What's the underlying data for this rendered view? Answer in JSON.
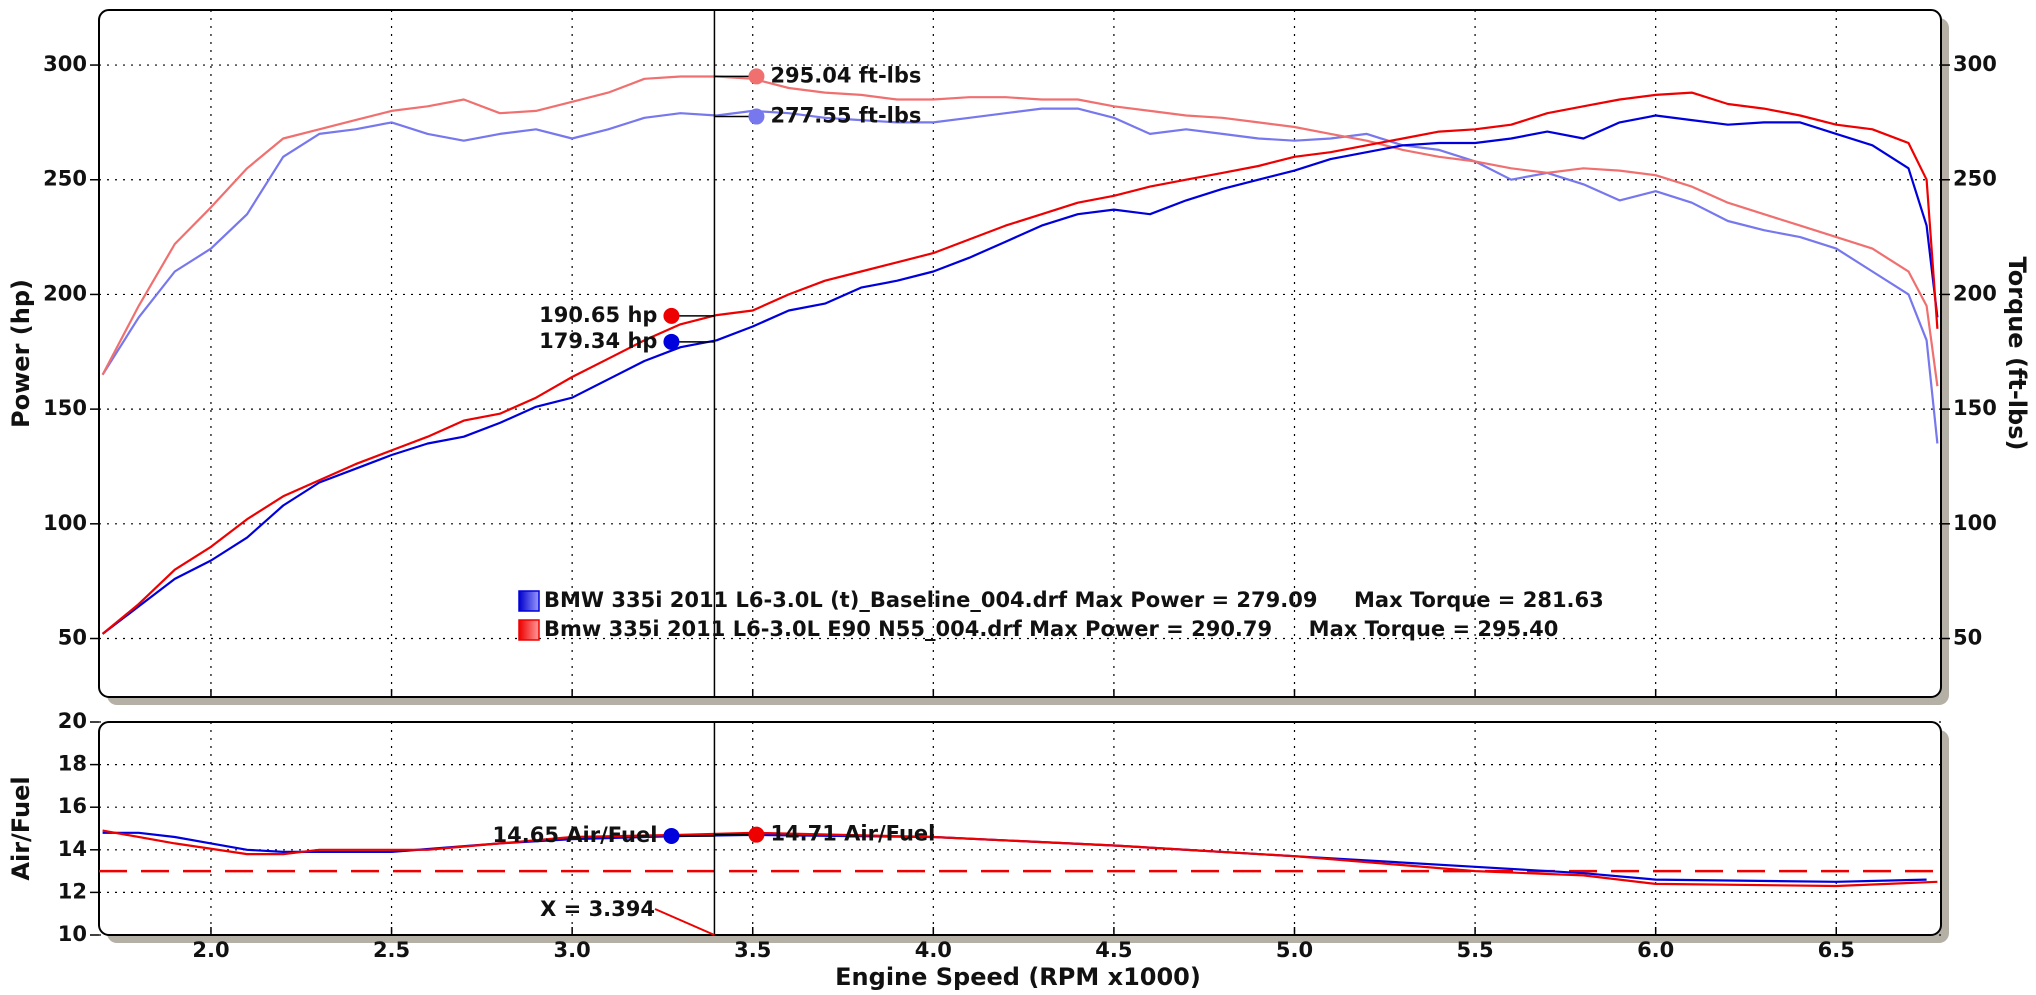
{
  "chart_data": {
    "type": "line",
    "xlabel": "Engine Speed (RPM x1000)",
    "xlim": [
      1.69,
      6.79
    ],
    "xticks": [
      {
        "value": 2,
        "label": "2.0"
      },
      {
        "value": 2.5,
        "label": "2.5"
      },
      {
        "value": 3,
        "label": "3.0"
      },
      {
        "value": 3.5,
        "label": "3.5"
      },
      {
        "value": 4,
        "label": "4.0"
      },
      {
        "value": 4.5,
        "label": "4.5"
      },
      {
        "value": 5,
        "label": "5.0"
      },
      {
        "value": 5.5,
        "label": "5.5"
      },
      {
        "value": 6,
        "label": "6.0"
      },
      {
        "value": 6.5,
        "label": "6.5"
      }
    ],
    "cursor": {
      "x": 3.394,
      "label": "X = 3.394"
    },
    "legend": [
      {
        "color": "#0000dd",
        "text": "BMW 335i 2011 L6-3.0L (t)_Baseline_004.drf Max Power = 279.09     Max Torque = 281.63"
      },
      {
        "color": "#ee0000",
        "text": "Bmw 335i 2011 L6-3.0L E90 N55_004.drf Max Power = 290.79     Max Torque = 295.40"
      }
    ],
    "panels": [
      {
        "ylabel": "Power (hp)",
        "y2label": "Torque (ft-lbs)",
        "ylim": [
          24.5,
          324
        ],
        "yticks": [
          50,
          100,
          150,
          200,
          250,
          300
        ],
        "y2lim": [
          24.5,
          324
        ],
        "y2ticks": [
          50,
          100,
          150,
          200,
          250,
          300
        ],
        "grid": true,
        "x": [
          1.7,
          1.8,
          1.9,
          2.0,
          2.1,
          2.2,
          2.3,
          2.4,
          2.5,
          2.6,
          2.7,
          2.8,
          2.9,
          3.0,
          3.1,
          3.2,
          3.3,
          3.4,
          3.5,
          3.6,
          3.7,
          3.8,
          3.9,
          4.0,
          4.1,
          4.2,
          4.3,
          4.4,
          4.5,
          4.6,
          4.7,
          4.8,
          4.9,
          5.0,
          5.1,
          5.2,
          5.3,
          5.4,
          5.5,
          5.6,
          5.7,
          5.8,
          5.9,
          6.0,
          6.1,
          6.2,
          6.3,
          6.4,
          6.5,
          6.6,
          6.7,
          6.75,
          6.78
        ],
        "series": [
          {
            "color": "#7777ee",
            "axis": "y2",
            "values": [
              165,
              190,
              210,
              220,
              235,
              260,
              270,
              272,
              275,
              270,
              267,
              270,
              272,
              268,
              272,
              277,
              279,
              278,
              280,
              279,
              277,
              276,
              275,
              275,
              277,
              279,
              281,
              281,
              277,
              270,
              272,
              270,
              268,
              267,
              268,
              270,
              265,
              263,
              258,
              250,
              253,
              248,
              241,
              245,
              240,
              232,
              228,
              225,
              220,
              210,
              200,
              180,
              135
            ]
          },
          {
            "color": "#f07070",
            "axis": "y2",
            "values": [
              165,
              195,
              222,
              238,
              255,
              268,
              272,
              276,
              280,
              282,
              285,
              279,
              280,
              284,
              288,
              294,
              295,
              295,
              294,
              290,
              288,
              287,
              285,
              285,
              286,
              286,
              285,
              285,
              282,
              280,
              278,
              277,
              275,
              273,
              270,
              267,
              263,
              260,
              258,
              255,
              253,
              255,
              254,
              252,
              247,
              240,
              235,
              230,
              225,
              220,
              210,
              195,
              160
            ]
          },
          {
            "color": "#0000dd",
            "values": [
              52,
              64,
              76,
              84,
              94,
              108,
              118,
              124,
              130,
              135,
              138,
              144,
              151,
              155,
              163,
              171,
              177,
              180,
              186,
              193,
              196,
              203,
              206,
              210,
              216,
              223,
              230,
              235,
              237,
              235,
              241,
              246,
              250,
              254,
              259,
              262,
              265,
              266,
              266,
              268,
              271,
              268,
              275,
              278,
              276,
              274,
              275,
              275,
              270,
              265,
              255,
              230,
              190
            ]
          },
          {
            "color": "#ee0000",
            "values": [
              52,
              65,
              80,
              90,
              102,
              112,
              119,
              126,
              132,
              138,
              145,
              148,
              155,
              164,
              172,
              180,
              187,
              191,
              193,
              200,
              206,
              210,
              214,
              218,
              224,
              230,
              235,
              240,
              243,
              247,
              250,
              253,
              256,
              260,
              262,
              265,
              268,
              271,
              272,
              274,
              279,
              282,
              285,
              287,
              288,
              283,
              281,
              278,
              274,
              272,
              266,
              250,
              185
            ]
          }
        ],
        "readouts": [
          {
            "color": "#ee0000",
            "value": 190.65,
            "label": "190.65 hp"
          },
          {
            "color": "#0000dd",
            "value": 179.34,
            "label": "179.34 hp"
          },
          {
            "color": "#f07070",
            "axis": "y2",
            "value": 295.04,
            "label": "295.04 ft-lbs"
          },
          {
            "color": "#7777ee",
            "axis": "y2",
            "value": 277.55,
            "label": "277.55 ft-lbs"
          }
        ]
      },
      {
        "ylabel": "Air/Fuel",
        "ylim": [
          10,
          20
        ],
        "yticks": [
          10,
          12,
          14,
          16,
          18,
          20
        ],
        "grid": true,
        "reference": {
          "value": 13,
          "color": "#ee0000"
        },
        "series": [
          {
            "color": "#0000dd",
            "x": [
              1.7,
              1.8,
              1.9,
              2.0,
              2.1,
              2.2,
              2.5,
              2.8,
              3.0,
              3.3,
              3.5,
              4.0,
              4.5,
              5.0,
              5.5,
              5.8,
              6.0,
              6.5,
              6.75
            ],
            "values": [
              14.8,
              14.8,
              14.6,
              14.3,
              14.0,
              13.9,
              13.9,
              14.3,
              14.5,
              14.65,
              14.7,
              14.6,
              14.2,
              13.7,
              13.2,
              12.9,
              12.6,
              12.5,
              12.6
            ]
          },
          {
            "color": "#ee0000",
            "x": [
              1.7,
              1.9,
              2.1,
              2.2,
              2.3,
              2.6,
              2.8,
              3.0,
              3.3,
              3.5,
              4.0,
              4.5,
              5.0,
              5.5,
              5.8,
              6.0,
              6.5,
              6.78
            ],
            "values": [
              14.9,
              14.3,
              13.8,
              13.8,
              14.0,
              14.0,
              14.3,
              14.6,
              14.7,
              14.8,
              14.6,
              14.2,
              13.7,
              13.0,
              12.8,
              12.4,
              12.3,
              12.5
            ]
          }
        ],
        "readouts": [
          {
            "color": "#0000dd",
            "value": 14.65,
            "label": "14.65 Air/Fuel"
          },
          {
            "color": "#ee0000",
            "value": 14.71,
            "label": "14.71 Air/Fuel"
          }
        ]
      }
    ]
  }
}
